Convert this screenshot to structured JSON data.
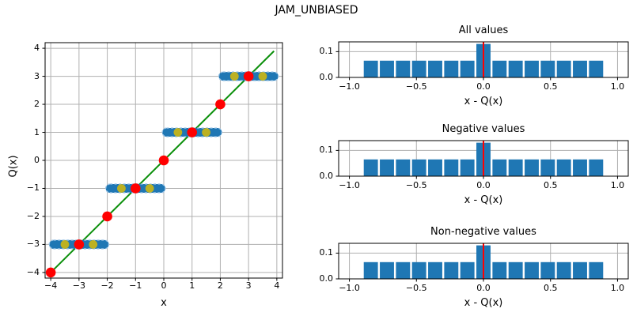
{
  "figure_title": "JAM_UNBIASED",
  "colors": {
    "bar_blue": "#1f77b4",
    "band_blue": "#1f77b4",
    "band_edge_lightblue": "#9fc6e7",
    "red": "#ff0000",
    "green": "#0a8f0a",
    "olive": "#bcb122",
    "grid_gray": "#b0b0b0",
    "frame_black": "#000000",
    "background": "#ffffff"
  },
  "chart_data": [
    {
      "id": "quantizer-scatter",
      "type": "scatter",
      "title": "",
      "xlabel": "x",
      "ylabel": "Q(x)",
      "xlim": [
        -4.2,
        4.2
      ],
      "ylim": [
        -4.2,
        4.2
      ],
      "grid": true,
      "xticks": {
        "values": [
          -4,
          -3,
          -2,
          -1,
          0,
          1,
          2,
          3,
          4
        ],
        "labels": [
          "−4",
          "−3",
          "−2",
          "−1",
          "0",
          "1",
          "2",
          "3",
          "4"
        ]
      },
      "yticks": {
        "values": [
          -4,
          -3,
          -2,
          -1,
          0,
          1,
          2,
          3,
          4
        ],
        "labels": [
          "−4",
          "−3",
          "−2",
          "−1",
          "0",
          "1",
          "2",
          "3",
          "4"
        ]
      },
      "identity_line": {
        "name": "identity-line",
        "points": [
          [
            -4,
            -4
          ],
          [
            3.9,
            3.9
          ]
        ],
        "color_key": "green",
        "width": 2
      },
      "bands": {
        "name": "quantized-sample-band",
        "color_key": "band_blue",
        "edge_color_key": "band_edge_lightblue",
        "dot_radius": 5.5,
        "items": [
          {
            "y": -3,
            "x_min": -3.9,
            "x_max": -2.1
          },
          {
            "y": -1,
            "x_min": -1.9,
            "x_max": -0.1
          },
          {
            "y": 1,
            "x_min": 0.1,
            "x_max": 1.9
          },
          {
            "y": 3,
            "x_min": 2.1,
            "x_max": 3.9
          }
        ]
      },
      "point_series": [
        {
          "name": "half-integer-point",
          "color_key": "olive",
          "radius": 5.4,
          "points": [
            [
              -3.5,
              -3
            ],
            [
              -2.5,
              -3
            ],
            [
              -1.5,
              -1
            ],
            [
              -0.5,
              -1
            ],
            [
              0.5,
              1
            ],
            [
              1.5,
              1
            ],
            [
              2.5,
              3
            ],
            [
              3.5,
              3
            ]
          ]
        },
        {
          "name": "integer-point",
          "color_key": "red",
          "radius": 6.3,
          "points": [
            [
              -4,
              -4
            ],
            [
              -3,
              -3
            ],
            [
              -2,
              -2
            ],
            [
              -1,
              -1
            ],
            [
              0,
              0
            ],
            [
              1,
              1
            ],
            [
              2,
              2
            ],
            [
              3,
              3
            ]
          ]
        }
      ]
    },
    {
      "id": "hist-all",
      "type": "bar",
      "title": "All values",
      "xlabel": "x - Q(x)",
      "xlim": [
        -1.08,
        1.08
      ],
      "ylim": [
        0,
        0.138
      ],
      "grid": true,
      "xticks": {
        "values": [
          -1.0,
          -0.5,
          0.0,
          0.5,
          1.0
        ],
        "labels": [
          "−1.0",
          "−0.5",
          "0.0",
          "0.5",
          "1.0"
        ]
      },
      "yticks": {
        "values": [
          0.0,
          0.1
        ],
        "labels": [
          "0.0",
          "0.1"
        ]
      },
      "bins": {
        "start": -0.9,
        "width": 0.12,
        "heights": [
          0.065,
          0.065,
          0.065,
          0.065,
          0.065,
          0.065,
          0.065,
          0.13,
          0.065,
          0.065,
          0.065,
          0.065,
          0.065,
          0.065,
          0.065
        ]
      },
      "bar_color_key": "bar_blue",
      "bar_rwidth": 0.88,
      "vline": {
        "x": 0,
        "color_key": "red",
        "width": 2
      }
    },
    {
      "id": "hist-negative",
      "type": "bar",
      "title": "Negative values",
      "xlabel": "x - Q(x)",
      "xlim": [
        -1.08,
        1.08
      ],
      "ylim": [
        0,
        0.138
      ],
      "grid": true,
      "xticks": {
        "values": [
          -1.0,
          -0.5,
          0.0,
          0.5,
          1.0
        ],
        "labels": [
          "−1.0",
          "−0.5",
          "0.0",
          "0.5",
          "1.0"
        ]
      },
      "yticks": {
        "values": [
          0.0,
          0.1
        ],
        "labels": [
          "0.0",
          "0.1"
        ]
      },
      "bins": {
        "start": -0.9,
        "width": 0.12,
        "heights": [
          0.065,
          0.065,
          0.065,
          0.065,
          0.065,
          0.065,
          0.065,
          0.13,
          0.065,
          0.065,
          0.065,
          0.065,
          0.065,
          0.065,
          0.065
        ]
      },
      "bar_color_key": "bar_blue",
      "bar_rwidth": 0.88,
      "vline": {
        "x": 0,
        "color_key": "red",
        "width": 2
      }
    },
    {
      "id": "hist-nonnegative",
      "type": "bar",
      "title": "Non-negative values",
      "xlabel": "x - Q(x)",
      "xlim": [
        -1.08,
        1.08
      ],
      "ylim": [
        0,
        0.138
      ],
      "grid": true,
      "xticks": {
        "values": [
          -1.0,
          -0.5,
          0.0,
          0.5,
          1.0
        ],
        "labels": [
          "−1.0",
          "−0.5",
          "0.0",
          "0.5",
          "1.0"
        ]
      },
      "yticks": {
        "values": [
          0.0,
          0.1
        ],
        "labels": [
          "0.0",
          "0.1"
        ]
      },
      "bins": {
        "start": -0.9,
        "width": 0.12,
        "heights": [
          0.065,
          0.065,
          0.065,
          0.065,
          0.065,
          0.065,
          0.065,
          0.13,
          0.065,
          0.065,
          0.065,
          0.065,
          0.065,
          0.065,
          0.065
        ]
      },
      "bar_color_key": "bar_blue",
      "bar_rwidth": 0.88,
      "vline": {
        "x": 0,
        "color_key": "red",
        "width": 2
      }
    }
  ]
}
